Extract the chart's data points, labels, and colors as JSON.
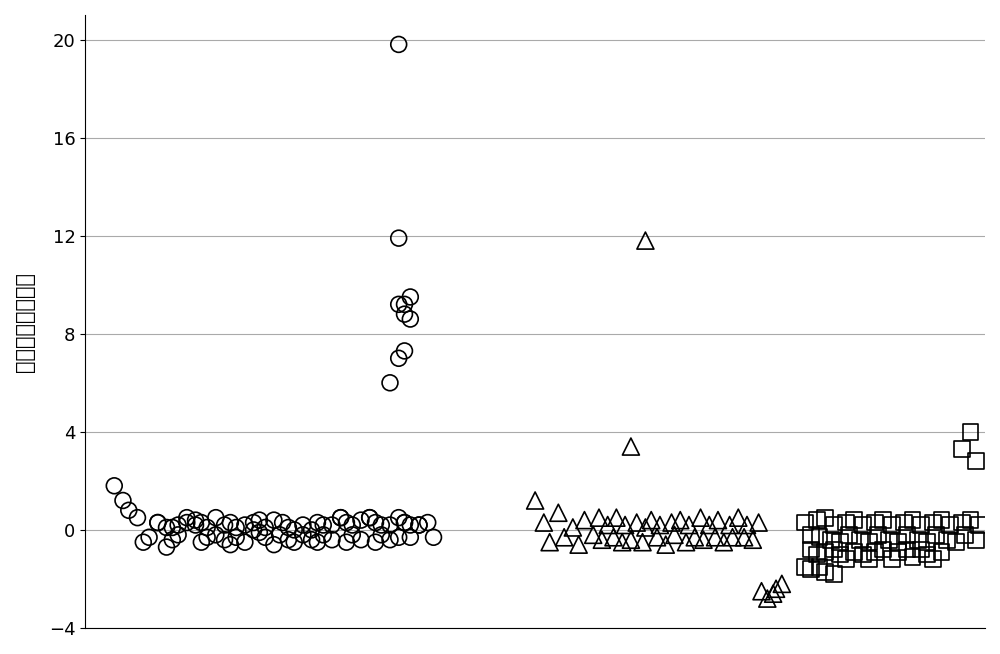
{
  "ylabel": "归一化的染色体值",
  "ylim": [
    -4,
    21
  ],
  "yticks": [
    -4,
    0,
    4,
    8,
    12,
    16,
    20
  ],
  "xlim": [
    0,
    310
  ],
  "background_color": "#ffffff",
  "grid_color": "#aaaaaa",
  "marker_facecolor": "none",
  "marker_edgecolor": "#000000",
  "marker_linewidth": 1.2,
  "circles_x": [
    10,
    13,
    15,
    18,
    20,
    22,
    25,
    28,
    30,
    32,
    35,
    38,
    40,
    42,
    45,
    48,
    50,
    52,
    55,
    58,
    60,
    62,
    65,
    67,
    70,
    72,
    75,
    78,
    80,
    82,
    85,
    88,
    90,
    92,
    95,
    98,
    100,
    102,
    105,
    108,
    110,
    112,
    115,
    118,
    120,
    25,
    28,
    30,
    32,
    35,
    38,
    40,
    42,
    45,
    48,
    50,
    52,
    55,
    58,
    60,
    62,
    65,
    68,
    70,
    72,
    75,
    78,
    80,
    82,
    85,
    88,
    90,
    92,
    95,
    98,
    100,
    102,
    105,
    108,
    110,
    112,
    115,
    105,
    108,
    110,
    112,
    108,
    110,
    112,
    108,
    110,
    108
  ],
  "circles_y": [
    1.8,
    1.2,
    0.8,
    0.5,
    -0.5,
    -0.3,
    0.3,
    -0.7,
    -0.4,
    -0.2,
    0.5,
    0.2,
    -0.5,
    -0.3,
    -0.2,
    -0.4,
    -0.6,
    -0.3,
    -0.5,
    0.3,
    -0.1,
    -0.3,
    -0.6,
    -0.2,
    -0.4,
    -0.5,
    -0.2,
    -0.4,
    -0.5,
    -0.2,
    -0.4,
    0.5,
    -0.5,
    -0.2,
    -0.4,
    0.5,
    -0.5,
    -0.2,
    -0.4,
    -0.3,
    0.3,
    -0.3,
    0.2,
    0.3,
    -0.3,
    0.3,
    0.1,
    0.1,
    0.2,
    0.3,
    0.4,
    0.3,
    0.1,
    0.5,
    0.2,
    0.3,
    0.1,
    0.2,
    0.0,
    0.4,
    0.1,
    0.4,
    0.3,
    0.1,
    0.0,
    0.2,
    0.0,
    0.3,
    0.2,
    0.2,
    0.5,
    0.3,
    0.2,
    0.4,
    0.5,
    0.3,
    0.2,
    0.2,
    0.5,
    0.3,
    0.2,
    0.2,
    6.0,
    7.0,
    9.2,
    9.5,
    9.2,
    8.8,
    8.6,
    11.9,
    7.3,
    19.8
  ],
  "triangles_x": [
    155,
    158,
    160,
    163,
    165,
    168,
    170,
    172,
    175,
    177,
    178,
    180,
    182,
    183,
    185,
    186,
    188,
    190,
    192,
    193,
    195,
    197,
    198,
    200,
    202,
    203,
    205,
    207,
    208,
    210,
    212,
    213,
    215,
    217,
    218,
    220,
    222,
    223,
    225,
    227,
    228,
    230,
    232,
    233,
    235,
    237,
    238,
    240,
    188,
    193
  ],
  "triangles_y": [
    1.2,
    0.3,
    -0.5,
    0.7,
    -0.3,
    0.1,
    -0.6,
    0.4,
    -0.2,
    0.5,
    -0.4,
    0.2,
    -0.3,
    0.5,
    -0.5,
    0.2,
    -0.4,
    0.3,
    -0.5,
    0.1,
    0.4,
    -0.3,
    0.2,
    -0.6,
    0.3,
    -0.2,
    0.4,
    -0.5,
    0.2,
    -0.3,
    0.5,
    -0.4,
    0.2,
    -0.3,
    0.4,
    -0.5,
    0.2,
    -0.3,
    0.5,
    -0.3,
    0.2,
    -0.4,
    0.3,
    -2.5,
    -2.8,
    -2.6,
    -2.4,
    -2.2,
    3.4,
    11.8
  ],
  "squares_x": [
    248,
    250,
    252,
    253,
    255,
    257,
    258,
    260,
    262,
    263,
    265,
    267,
    268,
    270,
    272,
    273,
    275,
    277,
    278,
    280,
    282,
    283,
    285,
    287,
    288,
    290,
    292,
    293,
    295,
    297,
    298,
    300,
    302,
    303,
    305,
    307,
    308,
    250,
    252,
    255,
    258,
    260,
    262,
    265,
    268,
    270,
    272,
    275,
    278,
    280,
    283,
    285,
    288,
    290,
    292,
    295,
    248,
    250,
    253,
    255,
    258,
    302,
    305,
    307
  ],
  "squares_y": [
    0.3,
    -0.2,
    0.4,
    -0.3,
    0.5,
    -0.4,
    0.2,
    -0.5,
    0.3,
    -0.2,
    0.4,
    -0.4,
    0.2,
    -0.5,
    0.3,
    -0.2,
    0.4,
    -0.4,
    0.2,
    -0.5,
    0.3,
    -0.2,
    0.4,
    -0.4,
    0.2,
    -0.5,
    0.3,
    -0.2,
    0.4,
    -0.4,
    0.2,
    -0.5,
    0.3,
    -0.2,
    0.4,
    -0.4,
    0.2,
    -0.8,
    -1.0,
    -0.9,
    -0.8,
    -1.0,
    -1.2,
    -0.9,
    -1.0,
    -1.2,
    -0.9,
    -0.8,
    -1.2,
    -0.9,
    -0.8,
    -1.1,
    -0.8,
    -1.0,
    -1.2,
    -0.9,
    -1.5,
    -1.6,
    -1.5,
    -1.7,
    -1.8,
    3.3,
    4.0,
    2.8
  ]
}
